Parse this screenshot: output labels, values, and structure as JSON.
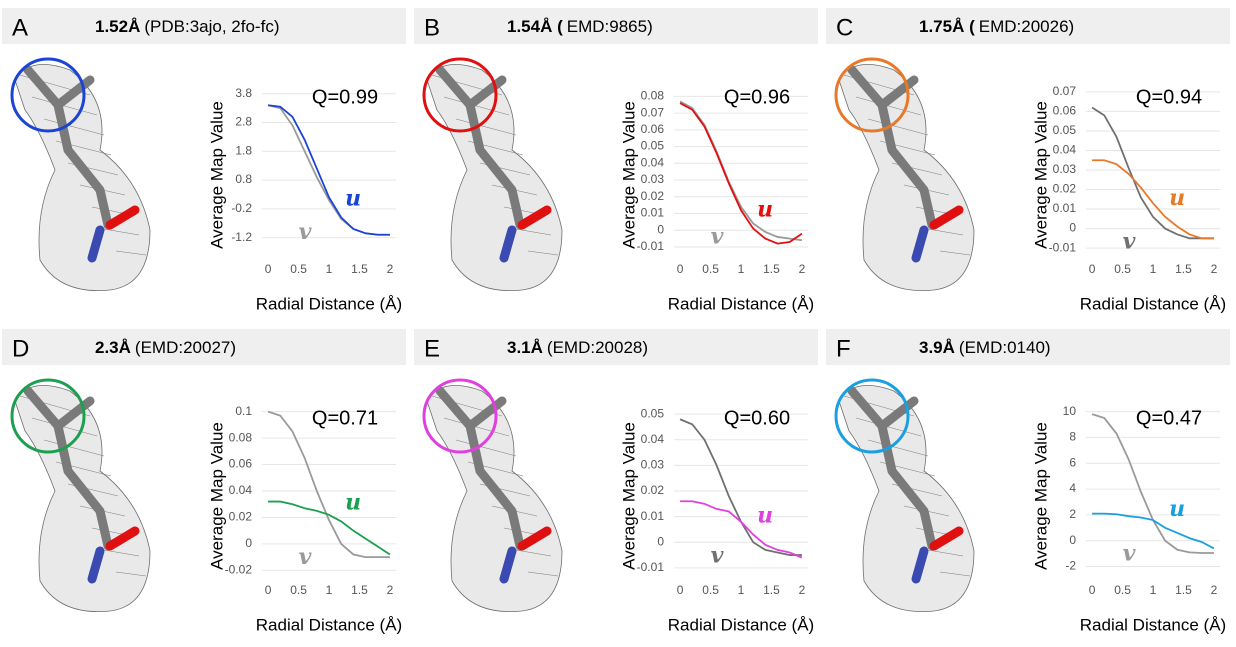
{
  "chart_data": [
    {
      "type": "line",
      "panel": "A",
      "title": "1.52Å",
      "subtitle": "(PDB:3ajo, 2fo-fc)",
      "annotation": "Q=0.99",
      "xlabel": "Radial Distance (Å)",
      "ylabel": "Average Map Value",
      "grid": true,
      "x": [
        0,
        0.2,
        0.4,
        0.6,
        0.8,
        1,
        1.2,
        1.4,
        1.6,
        1.8,
        2
      ],
      "xlim": [
        -0.1,
        2.1
      ],
      "xticks": [
        0,
        0.5,
        1,
        1.5,
        2
      ],
      "ylim": [
        -1.7,
        4.0
      ],
      "yticks": [
        -1.2,
        -0.2,
        0.8,
        1.8,
        2.8,
        3.8
      ],
      "series": [
        {
          "name": "u",
          "color": "#1a44d6",
          "values": [
            3.4,
            3.35,
            3.0,
            2.2,
            1.2,
            0.2,
            -0.5,
            -0.9,
            -1.05,
            -1.1,
            -1.1
          ]
        },
        {
          "name": "v",
          "color": "#9a9a9a",
          "values": [
            3.4,
            3.3,
            2.7,
            1.8,
            0.9,
            0.1,
            -0.55,
            -0.9,
            -1.05,
            -1.1,
            -1.1
          ]
        }
      ]
    },
    {
      "type": "line",
      "panel": "B",
      "title": "1.54Å (",
      "subtitle": "EMD:9865)",
      "annotation": "Q=0.96",
      "xlabel": "Radial Distance (Å)",
      "ylabel": "Average Map Value",
      "grid": true,
      "x": [
        0,
        0.2,
        0.4,
        0.6,
        0.8,
        1,
        1.2,
        1.4,
        1.6,
        1.8,
        2
      ],
      "xlim": [
        -0.1,
        2.1
      ],
      "xticks": [
        0,
        0.5,
        1,
        1.5,
        2
      ],
      "ylim": [
        -0.013,
        0.085
      ],
      "yticks": [
        -0.01,
        0,
        0.01,
        0.02,
        0.03,
        0.04,
        0.05,
        0.06,
        0.07,
        0.08
      ],
      "series": [
        {
          "name": "u",
          "color": "#e01010",
          "values": [
            0.076,
            0.072,
            0.062,
            0.046,
            0.028,
            0.012,
            0.001,
            -0.005,
            -0.008,
            -0.007,
            -0.002
          ]
        },
        {
          "name": "v",
          "color": "#9a9a9a",
          "values": [
            0.077,
            0.073,
            0.063,
            0.047,
            0.029,
            0.014,
            0.004,
            -0.001,
            -0.004,
            -0.005,
            -0.006
          ]
        }
      ]
    },
    {
      "type": "line",
      "panel": "C",
      "title": "1.75Å (",
      "subtitle": "EMD:20026)",
      "annotation": "Q=0.94",
      "xlabel": "Radial Distance (Å)",
      "ylabel": "Average Map Value",
      "grid": true,
      "x": [
        0,
        0.2,
        0.4,
        0.6,
        0.8,
        1,
        1.2,
        1.4,
        1.6,
        1.8,
        2
      ],
      "xlim": [
        -0.1,
        2.1
      ],
      "xticks": [
        0,
        0.5,
        1,
        1.5,
        2
      ],
      "ylim": [
        -0.012,
        0.072
      ],
      "yticks": [
        -0.01,
        0,
        0.01,
        0.02,
        0.03,
        0.04,
        0.05,
        0.06,
        0.07
      ],
      "series": [
        {
          "name": "u",
          "color": "#e8782a",
          "values": [
            0.035,
            0.035,
            0.033,
            0.028,
            0.021,
            0.013,
            0.006,
            0.001,
            -0.003,
            -0.005,
            -0.005
          ]
        },
        {
          "name": "v",
          "color": "#707070",
          "values": [
            0.062,
            0.058,
            0.047,
            0.031,
            0.016,
            0.006,
            0.0,
            -0.003,
            -0.005,
            -0.005,
            -0.005
          ]
        }
      ]
    },
    {
      "type": "line",
      "panel": "D",
      "title": "2.3Å",
      "subtitle": "(EMD:20027)",
      "annotation": "Q=0.71",
      "xlabel": "Radial Distance (Å)",
      "ylabel": "Average Map Value",
      "grid": true,
      "x": [
        0,
        0.2,
        0.4,
        0.6,
        0.8,
        1,
        1.2,
        1.4,
        1.6,
        1.8,
        2
      ],
      "xlim": [
        -0.1,
        2.1
      ],
      "xticks": [
        0,
        0.5,
        1,
        1.5,
        2
      ],
      "ylim": [
        -0.022,
        0.102
      ],
      "yticks": [
        -0.02,
        0,
        0.02,
        0.04,
        0.06,
        0.08,
        0.1
      ],
      "series": [
        {
          "name": "u",
          "color": "#1ca050",
          "values": [
            0.032,
            0.032,
            0.03,
            0.027,
            0.025,
            0.022,
            0.017,
            0.01,
            0.004,
            -0.002,
            -0.008
          ]
        },
        {
          "name": "v",
          "color": "#9a9a9a",
          "values": [
            0.1,
            0.097,
            0.085,
            0.065,
            0.04,
            0.018,
            0.0,
            -0.008,
            -0.01,
            -0.01,
            -0.01
          ]
        }
      ]
    },
    {
      "type": "line",
      "panel": "E",
      "title": "3.1Å",
      "subtitle": "(EMD:20028)",
      "annotation": "Q=0.60",
      "xlabel": "Radial Distance (Å)",
      "ylabel": "Average Map Value",
      "grid": true,
      "x": [
        0,
        0.2,
        0.4,
        0.6,
        0.8,
        1,
        1.2,
        1.4,
        1.6,
        1.8,
        2
      ],
      "xlim": [
        -0.1,
        2.1
      ],
      "xticks": [
        0,
        0.5,
        1,
        1.5,
        2
      ],
      "ylim": [
        -0.012,
        0.052
      ],
      "yticks": [
        -0.01,
        0,
        0.01,
        0.02,
        0.03,
        0.04,
        0.05
      ],
      "series": [
        {
          "name": "u",
          "color": "#e040e0",
          "values": [
            0.016,
            0.016,
            0.015,
            0.013,
            0.012,
            0.008,
            0.003,
            -0.001,
            -0.003,
            -0.004,
            -0.006
          ]
        },
        {
          "name": "v",
          "color": "#707070",
          "values": [
            0.048,
            0.046,
            0.04,
            0.03,
            0.018,
            0.008,
            0.0,
            -0.003,
            -0.004,
            -0.005,
            -0.005
          ]
        }
      ]
    },
    {
      "type": "line",
      "panel": "F",
      "title": "3.9Å",
      "subtitle": "(EMD:0140)",
      "annotation": "Q=0.47",
      "xlabel": "Radial Distance (Å)",
      "ylabel": "Average Map Value",
      "grid": true,
      "x": [
        0,
        0.2,
        0.4,
        0.6,
        0.8,
        1,
        1.2,
        1.4,
        1.6,
        1.8,
        2
      ],
      "xlim": [
        -0.1,
        2.1
      ],
      "xticks": [
        0,
        0.5,
        1,
        1.5,
        2
      ],
      "ylim": [
        -2.5,
        10.2
      ],
      "yticks": [
        -2,
        0,
        2,
        4,
        6,
        8,
        10
      ],
      "series": [
        {
          "name": "u",
          "color": "#1aa0e0",
          "values": [
            2.1,
            2.1,
            2.05,
            1.9,
            1.8,
            1.6,
            1.0,
            0.6,
            0.2,
            -0.1,
            -0.6
          ]
        },
        {
          "name": "v",
          "color": "#9a9a9a",
          "values": [
            9.8,
            9.5,
            8.3,
            6.3,
            3.8,
            1.6,
            0.0,
            -0.7,
            -0.9,
            -0.95,
            -0.95
          ]
        }
      ]
    }
  ]
}
